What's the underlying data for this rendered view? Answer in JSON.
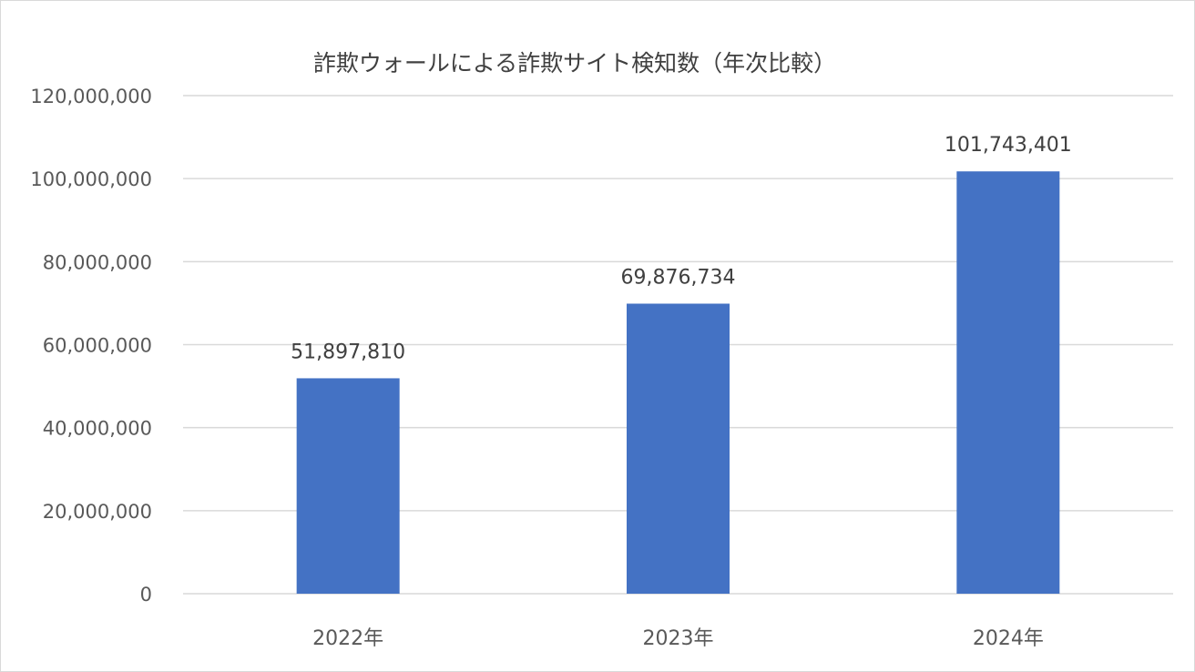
{
  "chart_data": {
    "type": "bar",
    "title": "詐欺ウォールによる詐欺サイト検知数（年次比較）",
    "categories": [
      "2022年",
      "2023年",
      "2024年"
    ],
    "values": [
      51897810,
      69876734,
      101743401
    ],
    "value_labels": [
      "51,897,810",
      "69,876,734",
      "101,743,401"
    ],
    "ylim": [
      0,
      120000000
    ],
    "yticks": [
      0,
      20000000,
      40000000,
      60000000,
      80000000,
      100000000,
      120000000
    ],
    "ytick_labels": [
      "0",
      "20,000,000",
      "40,000,000",
      "60,000,000",
      "80,000,000",
      "100,000,000",
      "120,000,000"
    ],
    "xlabel": "",
    "ylabel": "",
    "grid": true,
    "legend": "none",
    "bar_color": "#4472c4",
    "grid_color": "#d9d9d9"
  }
}
